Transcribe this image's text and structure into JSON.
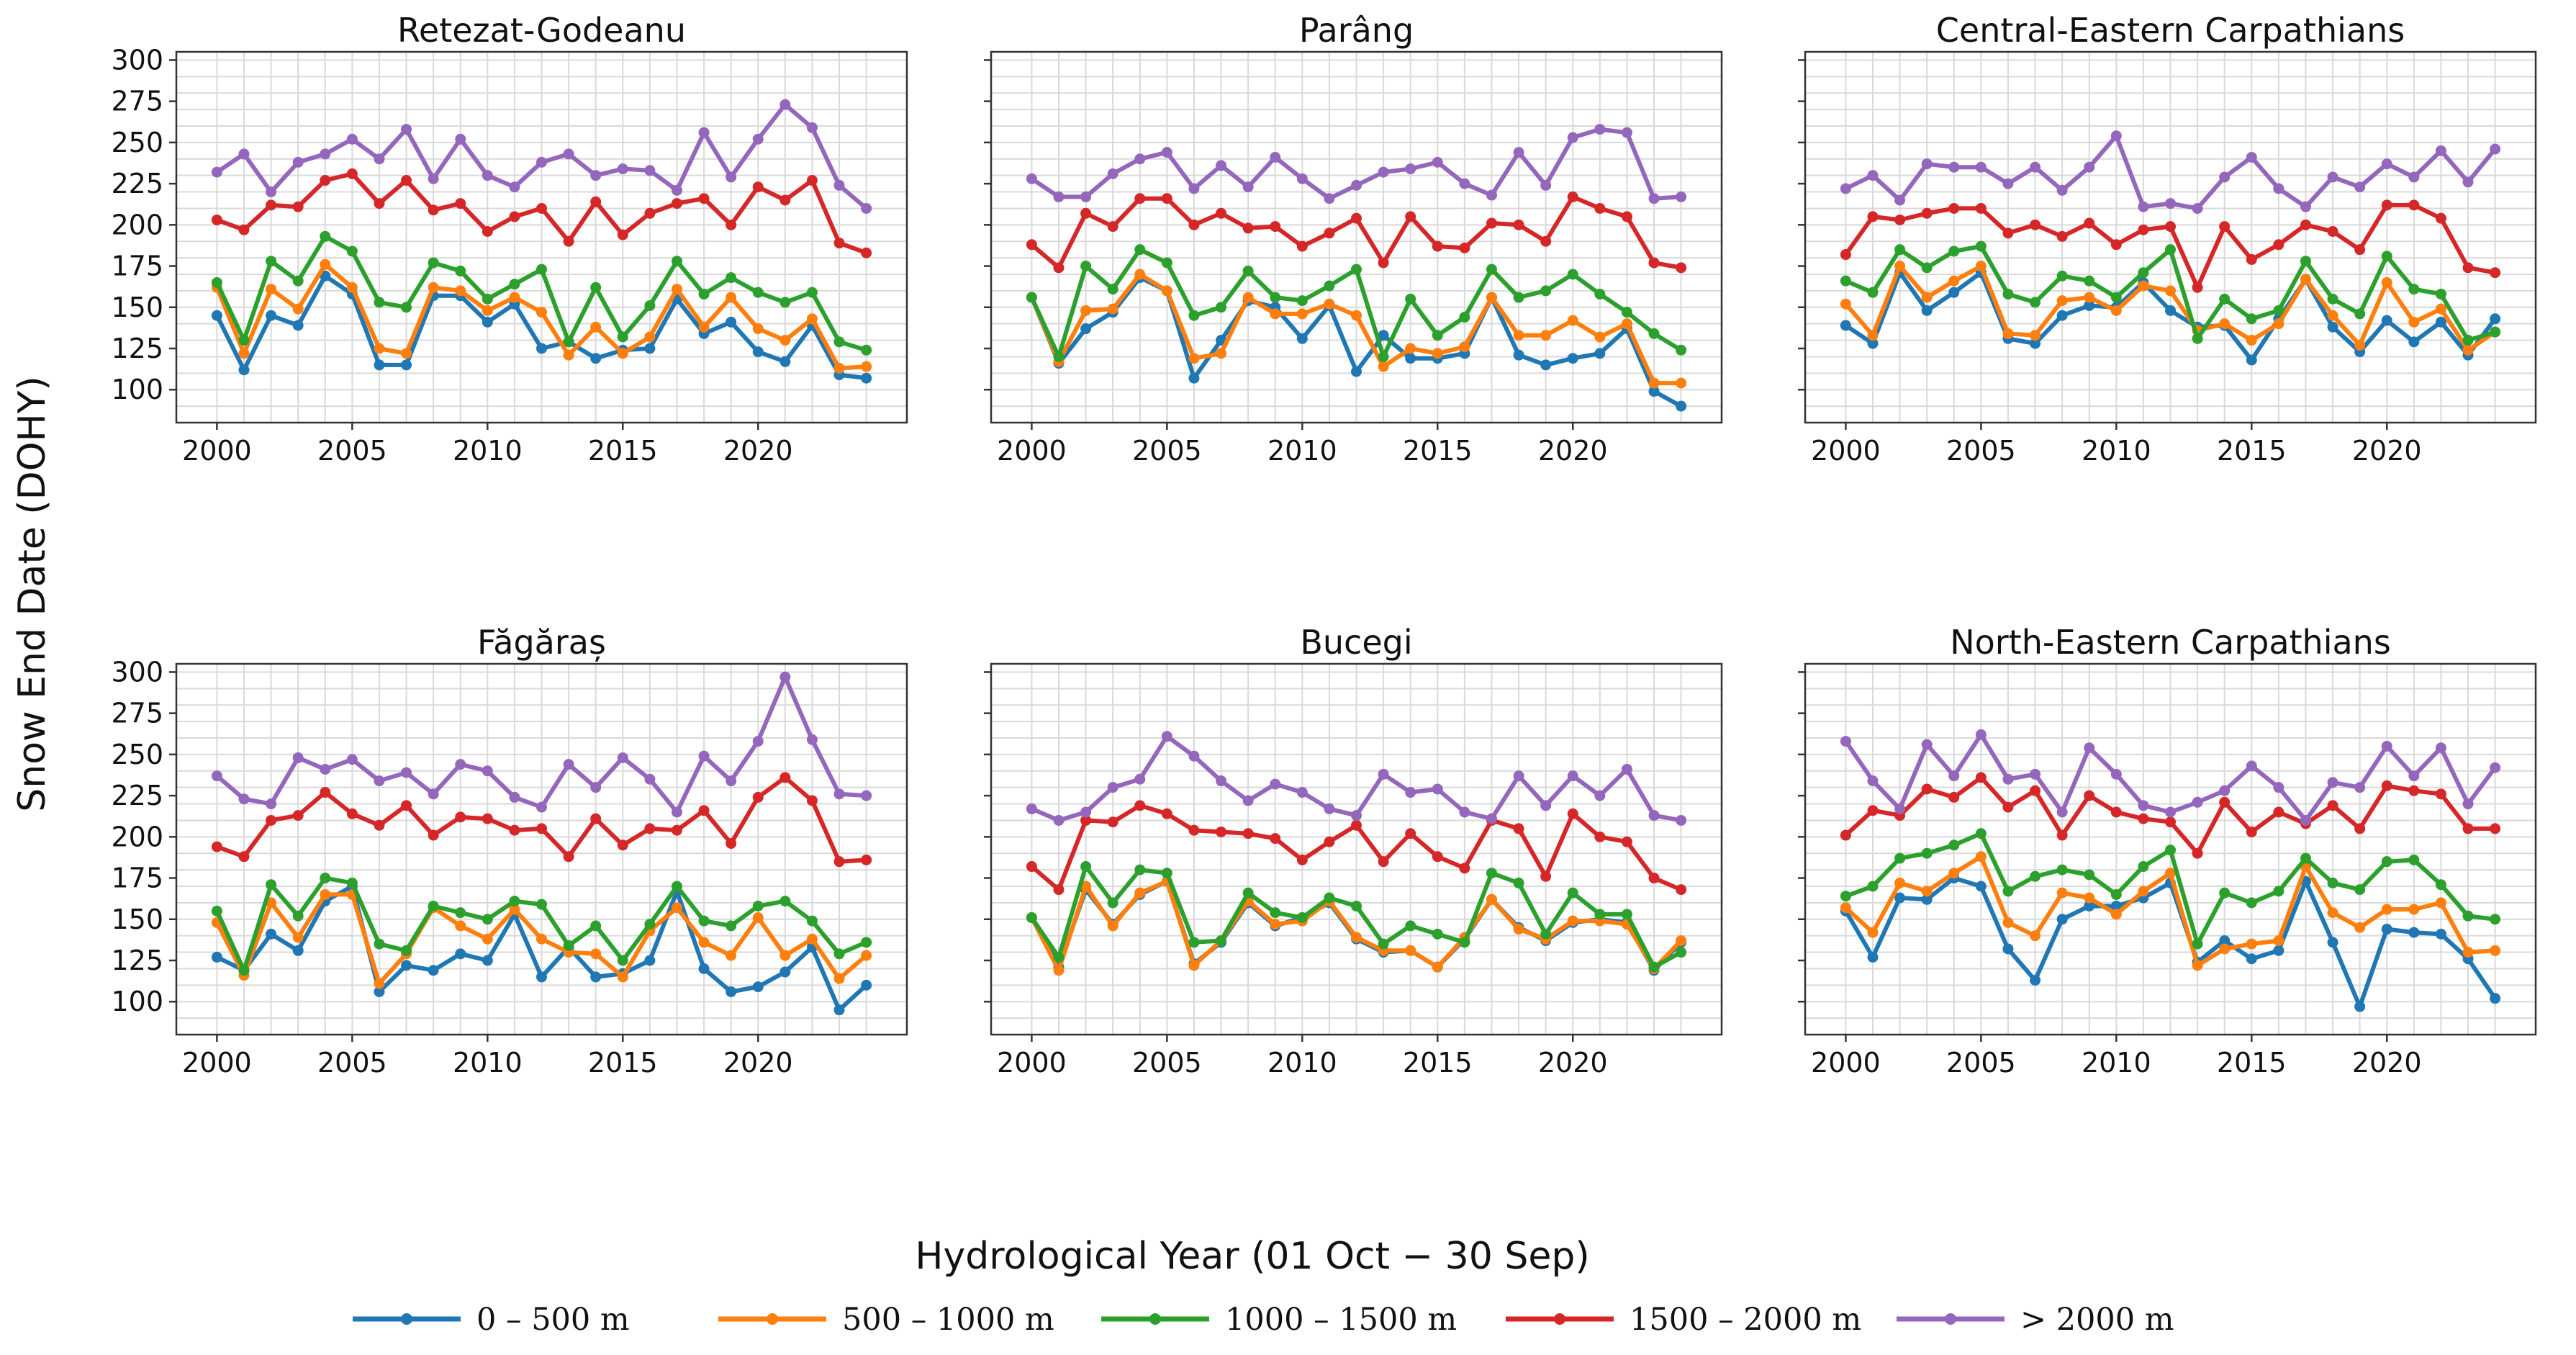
{
  "chart_data": [
    {
      "type": "line",
      "title": "Retezat-Godeanu",
      "x": [
        2000,
        2001,
        2002,
        2003,
        2004,
        2005,
        2006,
        2007,
        2008,
        2009,
        2010,
        2011,
        2012,
        2013,
        2014,
        2015,
        2016,
        2017,
        2018,
        2019,
        2020,
        2021,
        2022,
        2023,
        2024
      ],
      "series": [
        {
          "name": "0 – 500 m",
          "values": [
            145,
            112,
            145,
            139,
            169,
            158,
            115,
            115,
            157,
            157,
            141,
            152,
            125,
            129,
            119,
            124,
            125,
            155,
            134,
            141,
            123,
            117,
            139,
            109,
            107
          ]
        },
        {
          "name": "500 – 1000 m",
          "values": [
            162,
            122,
            161,
            149,
            176,
            162,
            125,
            122,
            162,
            160,
            148,
            156,
            147,
            121,
            138,
            122,
            132,
            161,
            138,
            156,
            137,
            130,
            143,
            113,
            114
          ]
        },
        {
          "name": "1000 – 1500 m",
          "values": [
            165,
            130,
            178,
            166,
            193,
            184,
            153,
            150,
            177,
            172,
            155,
            164,
            173,
            129,
            162,
            132,
            151,
            178,
            158,
            168,
            159,
            153,
            159,
            129,
            124
          ]
        },
        {
          "name": "1500 – 2000 m",
          "values": [
            203,
            197,
            212,
            211,
            227,
            231,
            213,
            227,
            209,
            213,
            196,
            205,
            210,
            190,
            214,
            194,
            207,
            213,
            216,
            200,
            223,
            215,
            227,
            189,
            183
          ]
        },
        {
          "name": "> 2000 m",
          "values": [
            232,
            243,
            220,
            238,
            243,
            252,
            240,
            258,
            228,
            252,
            230,
            223,
            238,
            243,
            230,
            234,
            233,
            221,
            256,
            229,
            252,
            273,
            259,
            224,
            210
          ]
        }
      ]
    },
    {
      "type": "line",
      "title": "Parâng",
      "x": [
        2000,
        2001,
        2002,
        2003,
        2004,
        2005,
        2006,
        2007,
        2008,
        2009,
        2010,
        2011,
        2012,
        2013,
        2014,
        2015,
        2016,
        2017,
        2018,
        2019,
        2020,
        2021,
        2022,
        2023,
        2024
      ],
      "series": [
        {
          "name": "0 – 500 m",
          "values": [
            156,
            116,
            137,
            147,
            168,
            160,
            107,
            130,
            154,
            150,
            131,
            151,
            111,
            133,
            119,
            119,
            122,
            156,
            121,
            115,
            119,
            122,
            137,
            99,
            90
          ]
        },
        {
          "name": "500 – 1000 m",
          "values": [
            156,
            117,
            148,
            149,
            170,
            160,
            119,
            122,
            156,
            146,
            146,
            152,
            145,
            114,
            125,
            122,
            126,
            156,
            133,
            133,
            142,
            132,
            140,
            104,
            104
          ]
        },
        {
          "name": "1000 – 1500 m",
          "values": [
            156,
            120,
            175,
            161,
            185,
            177,
            145,
            150,
            172,
            156,
            154,
            163,
            173,
            120,
            155,
            133,
            144,
            173,
            156,
            160,
            170,
            158,
            147,
            134,
            124
          ]
        },
        {
          "name": "1500 – 2000 m",
          "values": [
            188,
            174,
            207,
            199,
            216,
            216,
            200,
            207,
            198,
            199,
            187,
            195,
            204,
            177,
            205,
            187,
            186,
            201,
            200,
            190,
            217,
            210,
            205,
            177,
            174
          ]
        },
        {
          "name": "> 2000 m",
          "values": [
            228,
            217,
            217,
            231,
            240,
            244,
            222,
            236,
            223,
            241,
            228,
            216,
            224,
            232,
            234,
            238,
            225,
            218,
            244,
            224,
            253,
            258,
            256,
            216,
            217
          ]
        }
      ]
    },
    {
      "type": "line",
      "title": "Central-Eastern Carpathians",
      "x": [
        2000,
        2001,
        2002,
        2003,
        2004,
        2005,
        2006,
        2007,
        2008,
        2009,
        2010,
        2011,
        2012,
        2013,
        2014,
        2015,
        2016,
        2017,
        2018,
        2019,
        2020,
        2021,
        2022,
        2023,
        2024
      ],
      "series": [
        {
          "name": "0 – 500 m",
          "values": [
            139,
            128,
            171,
            148,
            159,
            171,
            131,
            128,
            145,
            151,
            150,
            165,
            148,
            138,
            139,
            118,
            143,
            167,
            138,
            123,
            142,
            129,
            141,
            121,
            143
          ]
        },
        {
          "name": "500 – 1000 m",
          "values": [
            152,
            133,
            175,
            156,
            166,
            175,
            134,
            133,
            154,
            156,
            148,
            163,
            160,
            136,
            140,
            130,
            140,
            167,
            145,
            127,
            165,
            141,
            149,
            124,
            135
          ]
        },
        {
          "name": "1000 – 1500 m",
          "values": [
            166,
            159,
            185,
            174,
            184,
            187,
            158,
            153,
            169,
            166,
            156,
            171,
            185,
            131,
            155,
            143,
            148,
            178,
            155,
            146,
            181,
            161,
            158,
            130,
            135
          ]
        },
        {
          "name": "1500 – 2000 m",
          "values": [
            182,
            205,
            203,
            207,
            210,
            210,
            195,
            200,
            193,
            201,
            188,
            197,
            199,
            162,
            199,
            179,
            188,
            200,
            196,
            185,
            212,
            212,
            204,
            174,
            171
          ]
        },
        {
          "name": "> 2000 m",
          "values": [
            222,
            230,
            215,
            237,
            235,
            235,
            225,
            235,
            221,
            235,
            254,
            211,
            213,
            210,
            229,
            241,
            222,
            211,
            229,
            223,
            237,
            229,
            245,
            226,
            246
          ]
        }
      ]
    },
    {
      "type": "line",
      "title": "Făgăraș",
      "x": [
        2000,
        2001,
        2002,
        2003,
        2004,
        2005,
        2006,
        2007,
        2008,
        2009,
        2010,
        2011,
        2012,
        2013,
        2014,
        2015,
        2016,
        2017,
        2018,
        2019,
        2020,
        2021,
        2022,
        2023,
        2024
      ],
      "series": [
        {
          "name": "0 – 500 m",
          "values": [
            127,
            119,
            141,
            131,
            161,
            170,
            106,
            122,
            119,
            129,
            125,
            153,
            115,
            133,
            115,
            117,
            125,
            167,
            120,
            106,
            109,
            118,
            133,
            95,
            110
          ]
        },
        {
          "name": "500 – 1000 m",
          "values": [
            148,
            116,
            160,
            139,
            165,
            165,
            111,
            129,
            157,
            146,
            138,
            156,
            138,
            130,
            129,
            115,
            143,
            157,
            136,
            128,
            151,
            128,
            138,
            114,
            128
          ]
        },
        {
          "name": "1000 – 1500 m",
          "values": [
            155,
            119,
            171,
            152,
            175,
            172,
            135,
            131,
            158,
            154,
            150,
            161,
            159,
            134,
            146,
            125,
            147,
            170,
            149,
            146,
            158,
            161,
            149,
            129,
            136
          ]
        },
        {
          "name": "1500 – 2000 m",
          "values": [
            194,
            188,
            210,
            213,
            227,
            214,
            207,
            219,
            201,
            212,
            211,
            204,
            205,
            188,
            211,
            195,
            205,
            204,
            216,
            196,
            224,
            236,
            222,
            185,
            186
          ]
        },
        {
          "name": "> 2000 m",
          "values": [
            237,
            223,
            220,
            248,
            241,
            247,
            234,
            239,
            226,
            244,
            240,
            224,
            218,
            244,
            230,
            248,
            235,
            215,
            249,
            234,
            258,
            297,
            259,
            226,
            225
          ]
        }
      ]
    },
    {
      "type": "line",
      "title": "Bucegi",
      "x": [
        2000,
        2001,
        2002,
        2003,
        2004,
        2005,
        2006,
        2007,
        2008,
        2009,
        2010,
        2011,
        2012,
        2013,
        2014,
        2015,
        2016,
        2017,
        2018,
        2019,
        2020,
        2021,
        2022,
        2023,
        2024
      ],
      "series": [
        {
          "name": "0 – 500 m",
          "values": [
            151,
            121,
            168,
            147,
            165,
            173,
            123,
            136,
            160,
            146,
            151,
            160,
            138,
            130,
            131,
            121,
            138,
            162,
            145,
            137,
            148,
            150,
            148,
            119,
            136
          ]
        },
        {
          "name": "500 – 1000 m",
          "values": [
            151,
            119,
            170,
            146,
            166,
            173,
            122,
            137,
            161,
            147,
            149,
            161,
            139,
            131,
            131,
            121,
            139,
            162,
            144,
            138,
            149,
            149,
            147,
            120,
            137
          ]
        },
        {
          "name": "1000 – 1500 m",
          "values": [
            151,
            127,
            182,
            160,
            180,
            178,
            136,
            137,
            166,
            154,
            151,
            163,
            158,
            135,
            146,
            141,
            136,
            178,
            172,
            141,
            166,
            153,
            153,
            121,
            130
          ]
        },
        {
          "name": "1500 – 2000 m",
          "values": [
            182,
            168,
            210,
            209,
            219,
            214,
            204,
            203,
            202,
            199,
            186,
            197,
            207,
            185,
            202,
            188,
            181,
            210,
            205,
            176,
            214,
            200,
            197,
            175,
            168
          ]
        },
        {
          "name": "> 2000 m",
          "values": [
            217,
            210,
            215,
            230,
            235,
            261,
            249,
            234,
            222,
            232,
            227,
            217,
            213,
            238,
            227,
            229,
            215,
            211,
            237,
            219,
            237,
            225,
            241,
            213,
            210
          ]
        }
      ]
    },
    {
      "type": "line",
      "title": "North-Eastern Carpathians",
      "x": [
        2000,
        2001,
        2002,
        2003,
        2004,
        2005,
        2006,
        2007,
        2008,
        2009,
        2010,
        2011,
        2012,
        2013,
        2014,
        2015,
        2016,
        2017,
        2018,
        2019,
        2020,
        2021,
        2022,
        2023,
        2024
      ],
      "series": [
        {
          "name": "0 – 500 m",
          "values": [
            155,
            127,
            163,
            162,
            175,
            170,
            132,
            113,
            150,
            158,
            158,
            163,
            172,
            124,
            137,
            126,
            131,
            173,
            136,
            97,
            144,
            142,
            141,
            126,
            102
          ]
        },
        {
          "name": "500 – 1000 m",
          "values": [
            157,
            142,
            172,
            167,
            178,
            188,
            148,
            140,
            166,
            163,
            153,
            167,
            178,
            122,
            132,
            135,
            137,
            182,
            154,
            145,
            156,
            156,
            160,
            130,
            131
          ]
        },
        {
          "name": "1000 – 1500 m",
          "values": [
            164,
            170,
            187,
            190,
            195,
            202,
            167,
            176,
            180,
            177,
            165,
            182,
            192,
            135,
            166,
            160,
            167,
            187,
            172,
            168,
            185,
            186,
            171,
            152,
            150
          ]
        },
        {
          "name": "1500 – 2000 m",
          "values": [
            201,
            216,
            213,
            229,
            224,
            236,
            218,
            228,
            201,
            225,
            215,
            211,
            209,
            190,
            221,
            203,
            215,
            208,
            219,
            205,
            231,
            228,
            226,
            205,
            205
          ]
        },
        {
          "name": "> 2000 m",
          "values": [
            258,
            234,
            217,
            256,
            237,
            262,
            235,
            238,
            215,
            254,
            238,
            219,
            215,
            221,
            228,
            243,
            230,
            210,
            233,
            230,
            255,
            237,
            254,
            220,
            242
          ]
        }
      ]
    }
  ],
  "axes": {
    "xlabel": "Hydrological Year (01 Oct − 30 Sep)",
    "ylabel": "Snow End Date (DOHY)",
    "xlim": [
      1998.5,
      2025.5
    ],
    "ylim": [
      80,
      305
    ],
    "xticks": [
      "2000",
      "2005",
      "2010",
      "2015",
      "2020"
    ],
    "xtick_values": [
      2000,
      2005,
      2010,
      2015,
      2020
    ],
    "yticks": [
      "100",
      "125",
      "150",
      "175",
      "200",
      "225",
      "250",
      "275",
      "300"
    ],
    "ytick_values": [
      100,
      125,
      150,
      175,
      200,
      225,
      250,
      275,
      300
    ],
    "grid": true,
    "shared_y": true
  },
  "legend": {
    "placement": "bottom-center",
    "entries": [
      {
        "label": "0 – 500 m",
        "color": "#1f77b4"
      },
      {
        "label": "500 – 1000 m",
        "color": "#ff7f0e"
      },
      {
        "label": "1000 – 1500 m",
        "color": "#2ca02c"
      },
      {
        "label": "1500 – 2000 m",
        "color": "#d62728"
      },
      {
        "label": "> 2000 m",
        "color": "#9467bd"
      }
    ]
  }
}
